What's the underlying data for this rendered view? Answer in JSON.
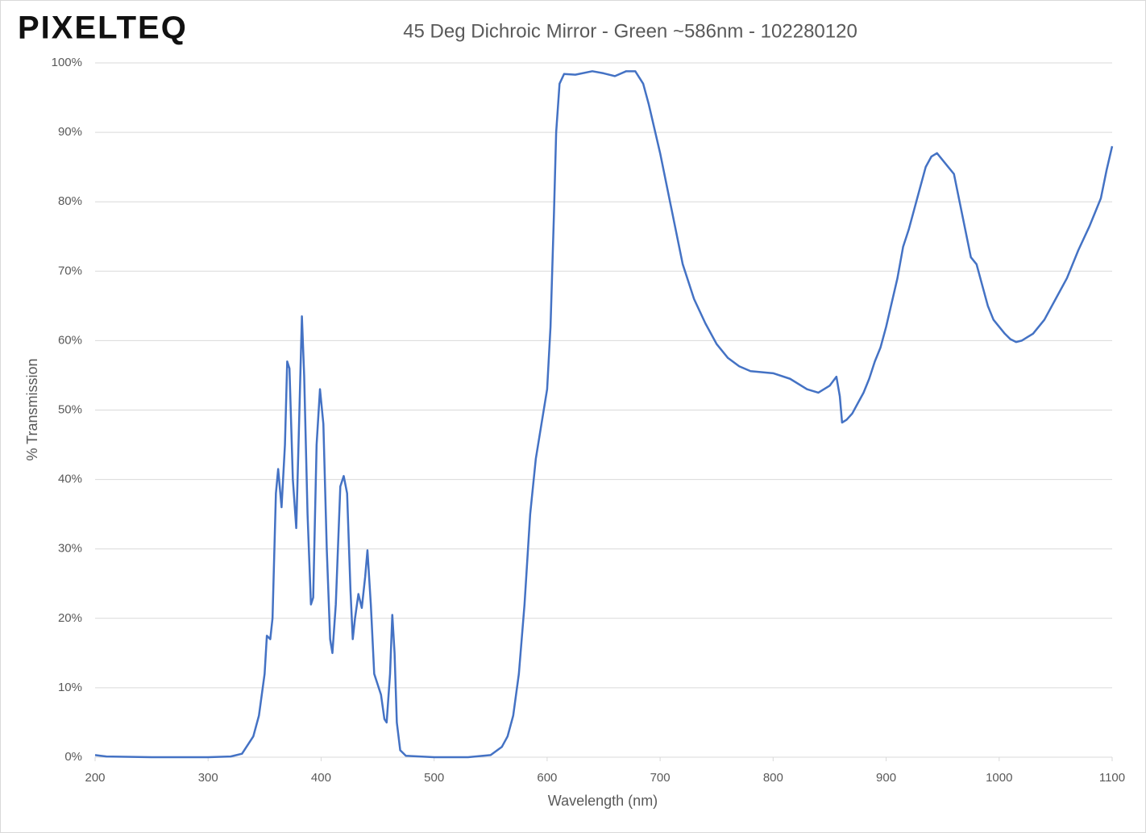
{
  "logo": "PIXELTEQ",
  "chart_data": {
    "type": "line",
    "title": "45 Deg Dichroic Mirror - Green ~586nm - 102280120",
    "x_label": "Wavelength (nm)",
    "y_label": "% Transmission",
    "color": "#4472c4",
    "grid": true,
    "xlim": [
      200,
      1100
    ],
    "xticks": [
      200,
      300,
      400,
      500,
      600,
      700,
      800,
      900,
      1000,
      1100
    ],
    "ylim": [
      0,
      100
    ],
    "yticks": [
      {
        "value": 0,
        "label": "0%"
      },
      {
        "value": 10,
        "label": "10%"
      },
      {
        "value": 20,
        "label": "20%"
      },
      {
        "value": 30,
        "label": "30%"
      },
      {
        "value": 40,
        "label": "40%"
      },
      {
        "value": 50,
        "label": "50%"
      },
      {
        "value": 60,
        "label": "60%"
      },
      {
        "value": 70,
        "label": "70%"
      },
      {
        "value": 80,
        "label": "80%"
      },
      {
        "value": 90,
        "label": "90%"
      },
      {
        "value": 100,
        "label": "100%"
      }
    ],
    "x": [
      200,
      210,
      250,
      300,
      320,
      330,
      340,
      345,
      350,
      352,
      355,
      357,
      360,
      362,
      365,
      368,
      370,
      372,
      375,
      378,
      380,
      383,
      385,
      388,
      391,
      393,
      396,
      399,
      402,
      405,
      408,
      410,
      413,
      417,
      420,
      423,
      426,
      428,
      430,
      433,
      436,
      439,
      441,
      444,
      447,
      450,
      453,
      456,
      458,
      461,
      463,
      465,
      467,
      470,
      475,
      500,
      530,
      550,
      560,
      565,
      570,
      575,
      580,
      585,
      590,
      595,
      600,
      603,
      606,
      608,
      611,
      615,
      625,
      640,
      650,
      660,
      670,
      678,
      685,
      690,
      700,
      710,
      720,
      730,
      740,
      750,
      760,
      770,
      780,
      800,
      815,
      830,
      840,
      850,
      856,
      859,
      861,
      865,
      870,
      875,
      880,
      885,
      890,
      895,
      900,
      905,
      910,
      915,
      920,
      925,
      930,
      935,
      940,
      945,
      950,
      955,
      960,
      965,
      970,
      975,
      980,
      985,
      990,
      995,
      1000,
      1005,
      1010,
      1015,
      1020,
      1025,
      1030,
      1040,
      1050,
      1060,
      1070,
      1080,
      1085,
      1090,
      1095,
      1100
    ],
    "values": [
      0.3,
      0.1,
      0,
      0,
      0.1,
      0.5,
      3,
      6,
      12,
      17.5,
      17,
      20,
      38,
      41.5,
      36,
      45,
      57,
      56,
      40,
      33,
      45,
      63.5,
      55,
      35,
      22,
      23,
      45,
      53,
      48,
      30,
      17,
      15,
      22,
      39,
      40.5,
      38,
      24,
      17,
      20,
      23.5,
      21.5,
      26,
      29.8,
      22,
      12,
      10.5,
      9,
      5.5,
      5,
      12,
      20.5,
      15,
      5,
      1,
      0.2,
      0,
      0,
      0.3,
      1.5,
      3,
      6,
      12,
      22,
      35,
      43,
      48,
      53,
      62,
      78,
      90,
      97,
      98.4,
      98.3,
      98.8,
      98.5,
      98.1,
      98.8,
      98.8,
      97,
      94,
      87,
      79,
      71,
      66,
      62.5,
      59.5,
      57.5,
      56.3,
      55.6,
      55.3,
      54.5,
      53,
      52.5,
      53.5,
      54.8,
      52,
      48.2,
      48.6,
      49.5,
      51,
      52.5,
      54.5,
      57,
      59,
      62,
      65.5,
      69,
      73.5,
      76,
      79,
      82,
      85,
      86.5,
      87,
      86,
      85,
      84,
      80,
      76,
      72,
      71,
      68,
      65,
      63,
      62,
      61,
      60.2,
      59.8,
      60,
      60.5,
      61,
      63,
      66,
      69,
      73,
      76.5,
      78.5,
      80.5,
      84.5,
      88
    ]
  }
}
